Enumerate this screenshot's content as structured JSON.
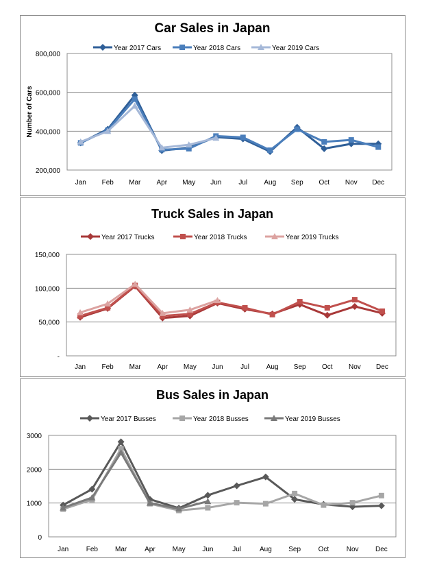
{
  "chart_data": [
    {
      "type": "line",
      "title": "Car Sales in Japan",
      "xlabel": "",
      "ylabel": "Number of Cars",
      "ylim": [
        200000,
        800000
      ],
      "yticks": [
        200000,
        400000,
        600000,
        800000
      ],
      "ytick_labels": [
        "200,000",
        "400,000",
        "600,000",
        "800,000"
      ],
      "grid": true,
      "legend": "top",
      "categories": [
        "Jan",
        "Feb",
        "Mar",
        "Apr",
        "May",
        "Jun",
        "Jul",
        "Aug",
        "Sep",
        "Oct",
        "Nov",
        "Dec"
      ],
      "series": [
        {
          "name": "Year 2017 Cars",
          "color": "#2f5f98",
          "marker": "diamond",
          "values": [
            340000,
            410000,
            585000,
            300000,
            315000,
            370000,
            360000,
            295000,
            420000,
            310000,
            335000,
            335000
          ]
        },
        {
          "name": "Year 2018 Cars",
          "color": "#4a7ebb",
          "marker": "square",
          "values": [
            340000,
            405000,
            565000,
            305000,
            310000,
            375000,
            368000,
            302000,
            410000,
            345000,
            355000,
            318000
          ]
        },
        {
          "name": "Year 2019 Cars",
          "color": "#a5b8d8",
          "marker": "triangle",
          "values": [
            345000,
            400000,
            530000,
            315000,
            330000,
            365000,
            null,
            null,
            null,
            null,
            null,
            null
          ]
        }
      ]
    },
    {
      "type": "line",
      "title": "Truck Sales in Japan",
      "xlabel": "",
      "ylabel": "",
      "ylim": [
        0,
        150000
      ],
      "yticks": [
        0,
        50000,
        100000,
        150000
      ],
      "ytick_labels": [
        "-",
        "50,000",
        "100,000",
        "150,000"
      ],
      "grid": true,
      "legend": "top",
      "categories": [
        "Jan",
        "Feb",
        "Mar",
        "Apr",
        "May",
        "Jun",
        "Jul",
        "Aug",
        "Sep",
        "Oct",
        "Nov",
        "Dec"
      ],
      "series": [
        {
          "name": "Year 2017 Trucks",
          "color": "#a83838",
          "marker": "diamond",
          "values": [
            57000,
            70000,
            103000,
            56000,
            59000,
            78000,
            69000,
            62000,
            76000,
            60000,
            73000,
            63000
          ]
        },
        {
          "name": "Year 2018 Trucks",
          "color": "#c0504d",
          "marker": "square",
          "values": [
            59000,
            71000,
            104000,
            59000,
            62000,
            79000,
            71000,
            61000,
            80000,
            71000,
            83000,
            66000
          ]
        },
        {
          "name": "Year 2019 Trucks",
          "color": "#dca3a1",
          "marker": "triangle",
          "values": [
            64000,
            77000,
            106000,
            63000,
            68000,
            82000,
            null,
            null,
            null,
            null,
            null,
            null
          ]
        }
      ]
    },
    {
      "type": "line",
      "title": "Bus Sales in Japan",
      "xlabel": "",
      "ylabel": "",
      "ylim": [
        0,
        3000
      ],
      "yticks": [
        0,
        1000,
        2000,
        3000
      ],
      "ytick_labels": [
        "0",
        "1000",
        "2000",
        "3000"
      ],
      "grid": true,
      "legend": "top",
      "categories": [
        "Jan",
        "Feb",
        "Mar",
        "Apr",
        "May",
        "Jun",
        "Jul",
        "Aug",
        "Sep",
        "Oct",
        "Nov",
        "Dec"
      ],
      "series": [
        {
          "name": "Year 2017 Busses",
          "color": "#595959",
          "marker": "diamond",
          "values": [
            940,
            1410,
            2810,
            1110,
            850,
            1230,
            1510,
            1770,
            1110,
            960,
            890,
            920
          ]
        },
        {
          "name": "Year 2018 Busses",
          "color": "#a6a6a6",
          "marker": "square",
          "values": [
            820,
            1100,
            2610,
            980,
            780,
            860,
            1010,
            980,
            1280,
            940,
            1010,
            1220
          ]
        },
        {
          "name": "Year 2019 Busses",
          "color": "#7a7a7a",
          "marker": "triangle",
          "values": [
            860,
            1160,
            2490,
            1000,
            830,
            1050,
            null,
            null,
            null,
            null,
            null,
            null
          ]
        }
      ]
    }
  ]
}
